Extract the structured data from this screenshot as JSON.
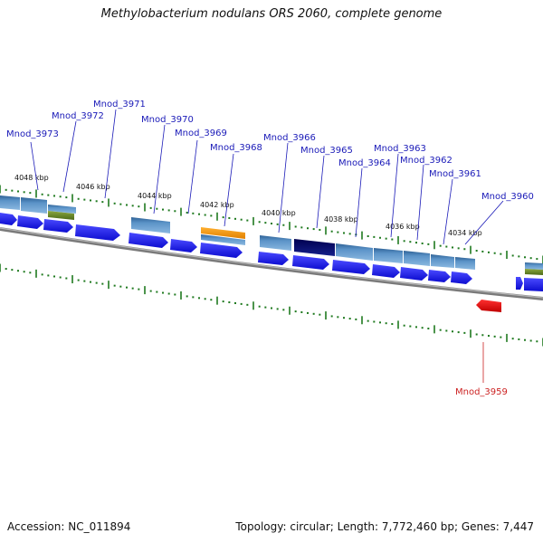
{
  "title": "Methylobacterium nodulans ORS 2060, complete genome",
  "footer": {
    "accession": "Accession: NC_011894",
    "summary": "Topology: circular; Length: 7,772,460 bp; Genes: 7,447"
  },
  "ruler_labels": [
    "4048 kbp",
    "4046 kbp",
    "4044 kbp",
    "4042 kbp",
    "4040 kbp",
    "4038 kbp",
    "4036 kbp",
    "4034 kbp"
  ],
  "gene_labels": [
    {
      "name": "Mnod_3973",
      "color": "#1a1ab8"
    },
    {
      "name": "Mnod_3972",
      "color": "#1a1ab8"
    },
    {
      "name": "Mnod_3971",
      "color": "#1a1ab8"
    },
    {
      "name": "Mnod_3970",
      "color": "#1a1ab8"
    },
    {
      "name": "Mnod_3969",
      "color": "#1a1ab8"
    },
    {
      "name": "Mnod_3968",
      "color": "#1a1ab8"
    },
    {
      "name": "Mnod_3966",
      "color": "#1a1ab8"
    },
    {
      "name": "Mnod_3965",
      "color": "#1a1ab8"
    },
    {
      "name": "Mnod_3964",
      "color": "#1a1ab8"
    },
    {
      "name": "Mnod_3963",
      "color": "#1a1ab8"
    },
    {
      "name": "Mnod_3962",
      "color": "#1a1ab8"
    },
    {
      "name": "Mnod_3961",
      "color": "#1a1ab8"
    },
    {
      "name": "Mnod_3960",
      "color": "#1a1ab8"
    },
    {
      "name": "Mnod_3959",
      "color": "#cc2222"
    }
  ],
  "colors": {
    "forward_gene": "#1a1aee",
    "cds_feature": "#4f88c0",
    "dark_feature": "#0c1070",
    "orange_feature": "#f29a10",
    "green_feature": "#6b8c2a",
    "reverse_gene": "#e41212",
    "backbone": "#8a8a8a",
    "ruler_tick": "#1f7a1f"
  }
}
